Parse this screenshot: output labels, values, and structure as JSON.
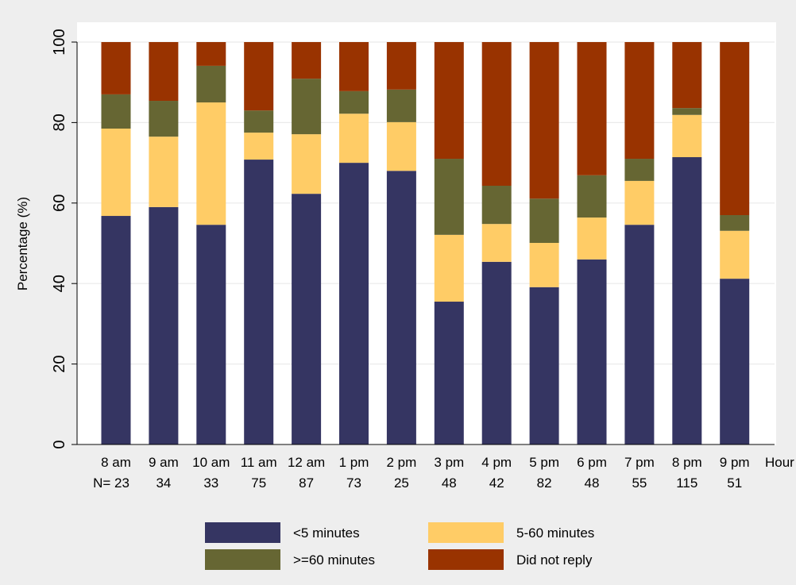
{
  "chart_data": {
    "type": "bar",
    "stacked": true,
    "title": "",
    "ylabel": "Percentage (%)",
    "xlabel": "Hour",
    "ylim": [
      0,
      100
    ],
    "yticks": [
      0,
      20,
      40,
      60,
      80,
      100
    ],
    "grid": true,
    "legend_position": "bottom",
    "categories": [
      "8 am",
      "9 am",
      "10 am",
      "11 am",
      "12 am",
      "1 pm",
      "2 pm",
      "3 pm",
      "4 pm",
      "5 pm",
      "6 pm",
      "7 pm",
      "8 pm",
      "9 pm"
    ],
    "n_prefix": "N=",
    "n_values": [
      "23",
      "34",
      "33",
      "75",
      "87",
      "73",
      "25",
      "48",
      "42",
      "82",
      "48",
      "55",
      "115",
      "51"
    ],
    "series": [
      {
        "name": "<5 minutes",
        "color": "#353562",
        "values": [
          56.8,
          59.0,
          54.6,
          70.8,
          62.3,
          70.0,
          68.0,
          35.5,
          45.4,
          39.1,
          46.0,
          54.6,
          71.4,
          41.2
        ]
      },
      {
        "name": "5-60 minutes",
        "color": "#ffcc66",
        "values": [
          21.7,
          17.5,
          30.4,
          6.7,
          14.8,
          12.2,
          12.1,
          16.6,
          9.4,
          11.0,
          10.4,
          10.9,
          10.5,
          11.9
        ]
      },
      {
        "name": ">=60 minutes",
        "color": "#666633",
        "values": [
          8.5,
          8.9,
          9.1,
          5.5,
          13.8,
          5.6,
          8.1,
          18.9,
          9.5,
          11.0,
          10.5,
          5.5,
          1.7,
          3.9
        ]
      },
      {
        "name": "Did not reply",
        "color": "#993300",
        "values": [
          13.0,
          14.6,
          5.9,
          17.0,
          9.1,
          12.2,
          11.8,
          29.0,
          35.7,
          38.9,
          33.1,
          29.0,
          16.4,
          43.0
        ]
      }
    ]
  }
}
